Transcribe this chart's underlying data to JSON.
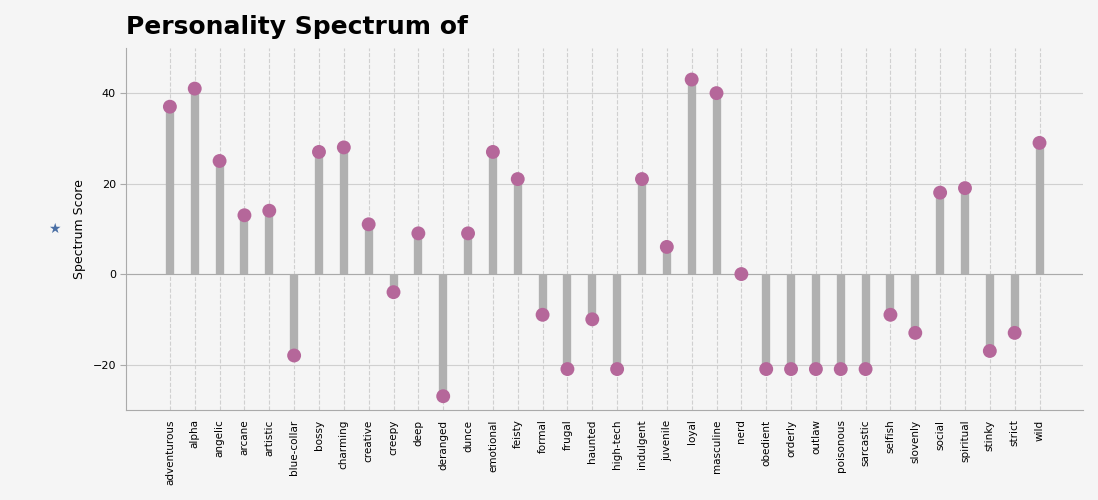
{
  "title": "Personality Spectrum of",
  "ylabel": "Spectrum Score",
  "categories": [
    "adventurous",
    "alpha",
    "angelic",
    "arcane",
    "artistic",
    "blue-collar",
    "bossy",
    "charming",
    "creative",
    "creepy",
    "deep",
    "deranged",
    "dunce",
    "emotional",
    "feisty",
    "formal",
    "frugal",
    "haunted",
    "high-tech",
    "indulgent",
    "juvenile",
    "loyal",
    "masculine",
    "nerd",
    "obedient",
    "orderly",
    "outlaw",
    "poisonous",
    "sarcastic",
    "selfish",
    "slovenly",
    "social",
    "spiritual",
    "stinky",
    "strict",
    "wild"
  ],
  "values": [
    37,
    41,
    25,
    13,
    14,
    -18,
    27,
    28,
    11,
    -4,
    9,
    -27,
    9,
    27,
    21,
    -9,
    -21,
    -10,
    -21,
    21,
    6,
    43,
    40,
    0,
    -21,
    -21,
    -21,
    -21,
    -21,
    -9,
    -13,
    18,
    19,
    -17,
    -13,
    29
  ],
  "bar_color": "#b0b0b0",
  "dot_color": "#b5679a",
  "background_color": "#f5f5f5",
  "grid_color": "#d0d0d0",
  "title_fontsize": 18,
  "label_fontsize": 7.5,
  "ylabel_fontsize": 9,
  "tick_fontsize": 8,
  "ylim": [
    -30,
    50
  ],
  "yticks": [
    -20,
    0,
    20,
    40
  ],
  "bar_width": 0.35,
  "dot_size": 100
}
